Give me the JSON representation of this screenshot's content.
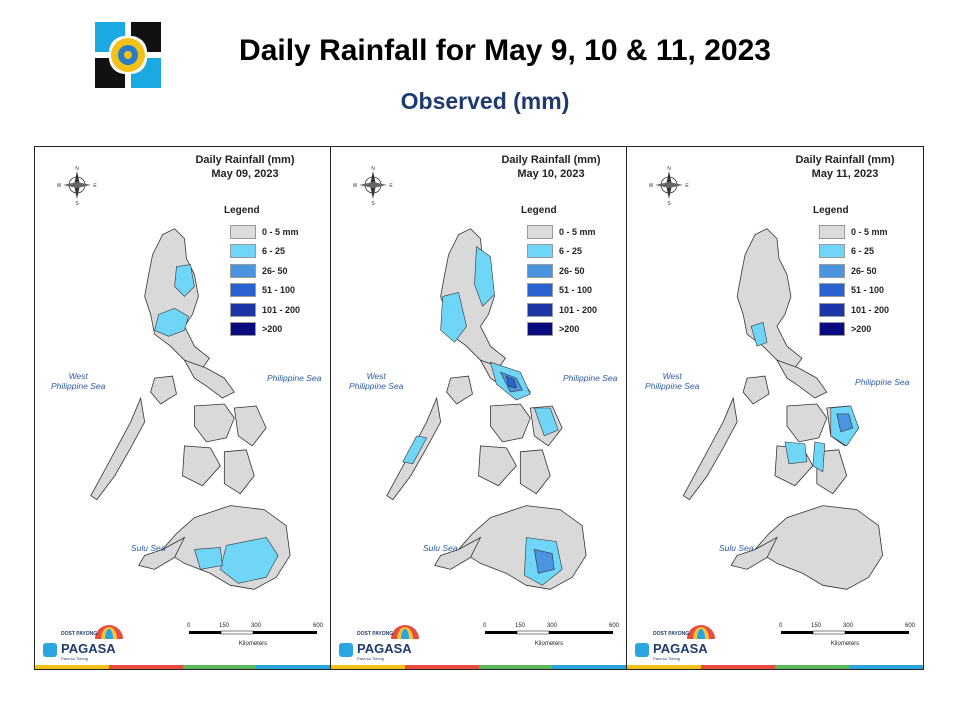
{
  "header": {
    "title": "Daily Rainfall for May 9, 10 & 11, 2023",
    "subtitle": "Observed (mm)"
  },
  "legend": {
    "title": "Legend",
    "classes": [
      {
        "label": "0 - 5 mm",
        "color": "#dcdcdc"
      },
      {
        "label": "6 - 25",
        "color": "#6fd6f7"
      },
      {
        "label": "26- 50",
        "color": "#4a94e0"
      },
      {
        "label": "51 - 100",
        "color": "#2a62cf"
      },
      {
        "label": "101 - 200",
        "color": "#1c36a8"
      },
      {
        "label": ">200",
        "color": "#0a0a80"
      }
    ]
  },
  "labels": {
    "west_sea": "West\nPhilippine Sea",
    "east_sea": "Philippine Sea",
    "sulu_sea": "Sulu Sea",
    "scale_ticks": [
      "0",
      "150",
      "300",
      "600"
    ],
    "scale_unit": "Kilometers",
    "compass": [
      "N",
      "E",
      "S",
      "W"
    ],
    "brand": "PAGASA",
    "brand_small": "DOST PAYONG",
    "brand_tag": "Para sa Tulong"
  },
  "panels": [
    {
      "title": "Daily Rainfall (mm)",
      "date": "May 09, 2023"
    },
    {
      "title": "Daily Rainfall (mm)",
      "date": "May 10, 2023"
    },
    {
      "title": "Daily Rainfall (mm)",
      "date": "May 11, 2023"
    }
  ],
  "colors": {
    "land": "#d9d9d9",
    "border": "#333333",
    "accent_title": "#1f3a6e",
    "sea_label": "#2a5aa0"
  }
}
